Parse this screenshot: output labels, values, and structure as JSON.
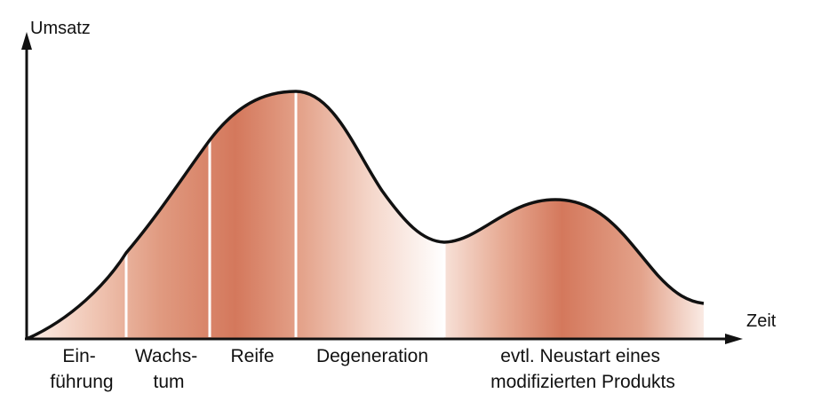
{
  "axes": {
    "y_label": "Umsatz",
    "x_label": "Zeit"
  },
  "phases": [
    {
      "id": "einfuehrung",
      "lines": [
        "Ein-",
        "führung"
      ]
    },
    {
      "id": "wachstum",
      "lines": [
        "Wachs-",
        "tum"
      ]
    },
    {
      "id": "reife",
      "lines": [
        "Reife"
      ]
    },
    {
      "id": "degeneration",
      "lines": [
        "Degeneration"
      ]
    },
    {
      "id": "neustart",
      "lines": [
        "evtl. Neustart eines",
        "modifizierten Produkts"
      ]
    }
  ],
  "colors": {
    "axis": "#111111",
    "curve": "#111111",
    "fill_dark": "#d4785c",
    "fill_light": "#fbeee8",
    "fill_white": "#ffffff",
    "divider": "#ffffff"
  }
}
